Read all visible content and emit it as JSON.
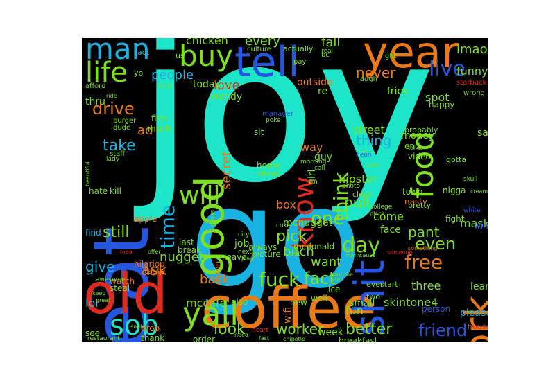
{
  "colors": {
    "background": "#000000",
    "page": "#ffffff",
    "turquoise": "#1de5c8",
    "sky": "#18b3e0",
    "blue": "#2556e0",
    "green": "#7ee020",
    "orange": "#ea7a18",
    "red": "#e02a20",
    "teal": "#17a39a"
  },
  "words": [
    {
      "text": "joy",
      "color": "turquoise"
    },
    {
      "text": "go",
      "color": "sky"
    },
    {
      "text": "coffee",
      "color": "orange"
    },
    {
      "text": "eat",
      "color": "blue"
    },
    {
      "text": "old",
      "color": "red"
    },
    {
      "text": "year",
      "color": "orange"
    },
    {
      "text": "tell",
      "color": "blue"
    },
    {
      "text": "shit",
      "color": "blue"
    },
    {
      "text": "good",
      "color": "green"
    },
    {
      "text": "work",
      "color": "orange"
    },
    {
      "text": "yall",
      "color": "green"
    },
    {
      "text": "sob",
      "color": "turquoise"
    },
    {
      "text": "man",
      "color": "sky"
    },
    {
      "text": "buy",
      "color": "green"
    },
    {
      "text": "life",
      "color": "green"
    },
    {
      "text": "know",
      "color": "red"
    },
    {
      "text": "food",
      "color": "green"
    },
    {
      "text": "think",
      "color": "green"
    },
    {
      "text": "make",
      "color": "blue"
    },
    {
      "text": "live",
      "color": "blue"
    },
    {
      "text": "free",
      "color": "orange"
    },
    {
      "text": "will",
      "color": "green"
    },
    {
      "text": "time",
      "color": "sky"
    },
    {
      "text": "day",
      "color": "green"
    },
    {
      "text": "fuck",
      "color": "green"
    },
    {
      "text": "fact",
      "color": "green"
    },
    {
      "text": "friend",
      "color": "blue"
    },
    {
      "text": "worker",
      "color": "green"
    },
    {
      "text": "better",
      "color": "green"
    },
    {
      "text": "look",
      "color": "green"
    },
    {
      "text": "ask",
      "color": "orange"
    },
    {
      "text": "drive",
      "color": "orange"
    },
    {
      "text": "take",
      "color": "sky"
    },
    {
      "text": "one",
      "color": "green"
    },
    {
      "text": "people",
      "color": "sky"
    },
    {
      "text": "never",
      "color": "orange"
    },
    {
      "text": "even",
      "color": "green"
    },
    {
      "text": "now",
      "color": "orange"
    },
    {
      "text": "give",
      "color": "sky"
    },
    {
      "text": "still",
      "color": "green"
    },
    {
      "text": "back",
      "color": "orange"
    },
    {
      "text": "pick",
      "color": "green"
    },
    {
      "text": "bitch",
      "color": "green"
    },
    {
      "text": "want",
      "color": "green"
    },
    {
      "text": "skintone4",
      "color": "green"
    },
    {
      "text": "pull",
      "color": "green"
    },
    {
      "text": "thing",
      "color": "sky"
    },
    {
      "text": "secret",
      "color": "orange"
    },
    {
      "text": "love",
      "color": "red"
    },
    {
      "text": "chicken",
      "color": "green"
    },
    {
      "text": "every",
      "color": "green"
    },
    {
      "text": "fall",
      "color": "green"
    },
    {
      "text": "lmao",
      "color": "green"
    },
    {
      "text": "funny",
      "color": "green"
    },
    {
      "text": "spot",
      "color": "green"
    },
    {
      "text": "money",
      "color": "green"
    },
    {
      "text": "pant",
      "color": "green"
    },
    {
      "text": "three",
      "color": "green"
    },
    {
      "text": "mask",
      "color": "green"
    },
    {
      "text": "learn",
      "color": "green"
    },
    {
      "text": "ad",
      "color": "orange"
    },
    {
      "text": "ill",
      "color": "sky"
    },
    {
      "text": "job",
      "color": "green"
    },
    {
      "text": "nugget",
      "color": "green"
    },
    {
      "text": "mccafe",
      "color": "green"
    },
    {
      "text": "lol",
      "color": "sky"
    },
    {
      "text": "fun",
      "color": "green"
    },
    {
      "text": "small",
      "color": "green"
    },
    {
      "text": "week",
      "color": "green"
    },
    {
      "text": "wifi",
      "color": "orange"
    },
    {
      "text": "come",
      "color": "green"
    },
    {
      "text": "face",
      "color": "green"
    },
    {
      "text": "street",
      "color": "green"
    },
    {
      "text": "way",
      "color": "orange"
    },
    {
      "text": "guy",
      "color": "green"
    },
    {
      "text": "hipster",
      "color": "green"
    },
    {
      "text": "girl",
      "color": "green"
    },
    {
      "text": "box",
      "color": "orange"
    },
    {
      "text": "today",
      "color": "green"
    },
    {
      "text": "wendy",
      "color": "green"
    },
    {
      "text": "outside",
      "color": "orange"
    },
    {
      "text": "re",
      "color": "green"
    },
    {
      "text": "thru",
      "color": "green"
    },
    {
      "text": "first",
      "color": "green"
    },
    {
      "text": "much",
      "color": "green"
    },
    {
      "text": "sit",
      "color": "green"
    },
    {
      "text": "home",
      "color": "green"
    },
    {
      "text": "cheap",
      "color": "green"
    },
    {
      "text": "fries",
      "color": "green"
    },
    {
      "text": "happy",
      "color": "green"
    },
    {
      "text": "probably",
      "color": "green"
    },
    {
      "text": "end",
      "color": "green"
    },
    {
      "text": "video",
      "color": "green"
    },
    {
      "text": "saw",
      "color": "green"
    },
    {
      "text": "nigga",
      "color": "green"
    },
    {
      "text": "fight",
      "color": "green"
    },
    {
      "text": "window",
      "color": "blue"
    },
    {
      "text": "gotta",
      "color": "green"
    },
    {
      "text": "town",
      "color": "green"
    },
    {
      "text": "close",
      "color": "green"
    },
    {
      "text": "nasty",
      "color": "orange"
    },
    {
      "text": "pretty",
      "color": "green"
    },
    {
      "text": "person",
      "color": "blue"
    },
    {
      "text": "please",
      "color": "sky"
    },
    {
      "text": "mcnugget",
      "color": "green"
    },
    {
      "text": "hate",
      "color": "green"
    },
    {
      "text": "kill",
      "color": "green"
    },
    {
      "text": "apple",
      "color": "orange"
    },
    {
      "text": "find",
      "color": "sky"
    },
    {
      "text": "last",
      "color": "green"
    },
    {
      "text": "break",
      "color": "green"
    },
    {
      "text": "leave",
      "color": "green"
    },
    {
      "text": "damn",
      "color": "orange"
    },
    {
      "text": "always",
      "color": "green"
    },
    {
      "text": "picture",
      "color": "green"
    },
    {
      "text": "mcdonald",
      "color": "green"
    },
    {
      "text": "hilariou",
      "color": "orange"
    },
    {
      "text": "taste",
      "color": "orange"
    },
    {
      "text": "watch",
      "color": "orange"
    },
    {
      "text": "steal",
      "color": "green"
    },
    {
      "text": "ice",
      "color": "green"
    },
    {
      "text": "ever",
      "color": "green"
    },
    {
      "text": "start",
      "color": "green"
    },
    {
      "text": "well",
      "color": "green"
    },
    {
      "text": "also",
      "color": "green"
    },
    {
      "text": "see",
      "color": "green"
    },
    {
      "text": "thank",
      "color": "green"
    },
    {
      "text": "order",
      "color": "green"
    },
    {
      "text": "drop",
      "color": "orange"
    },
    {
      "text": "two",
      "color": "green"
    },
    {
      "text": "new",
      "color": "green"
    },
    {
      "text": "breakfast",
      "color": "green"
    },
    {
      "text": "house",
      "color": "red"
    },
    {
      "text": "act",
      "color": "sky"
    },
    {
      "text": "yo",
      "color": "green"
    },
    {
      "text": "us",
      "color": "green"
    },
    {
      "text": "culture",
      "color": "green"
    },
    {
      "text": "actually",
      "color": "green"
    },
    {
      "text": "pay",
      "color": "green"
    },
    {
      "text": "bc",
      "color": "green"
    },
    {
      "text": "real",
      "color": "green"
    },
    {
      "text": "right",
      "color": "green"
    },
    {
      "text": "laugh",
      "color": "green"
    },
    {
      "text": "starbuck",
      "color": "red"
    },
    {
      "text": "wrong",
      "color": "green"
    },
    {
      "text": "best",
      "color": "green"
    },
    {
      "text": "hot",
      "color": "green"
    },
    {
      "text": "afford",
      "color": "green"
    },
    {
      "text": "burger",
      "color": "green"
    },
    {
      "text": "dude",
      "color": "green"
    },
    {
      "text": "staff",
      "color": "green"
    },
    {
      "text": "lady",
      "color": "green"
    },
    {
      "text": "beautiful",
      "color": "green"
    },
    {
      "text": "manager",
      "color": "blue"
    },
    {
      "text": "poke",
      "color": "green"
    },
    {
      "text": "morning",
      "color": "green"
    },
    {
      "text": "call",
      "color": "green"
    },
    {
      "text": "cry",
      "color": "green"
    },
    {
      "text": "save",
      "color": "green"
    },
    {
      "text": "place",
      "color": "green"
    },
    {
      "text": "photo",
      "color": "green"
    },
    {
      "text": "neon",
      "color": "blue"
    },
    {
      "text": "college",
      "color": "green"
    },
    {
      "text": "gross",
      "color": "green"
    },
    {
      "text": "city",
      "color": "green"
    },
    {
      "text": "coke",
      "color": "green"
    },
    {
      "text": "next",
      "color": "green"
    },
    {
      "text": "play",
      "color": "green"
    },
    {
      "text": "put",
      "color": "green"
    },
    {
      "text": "skull",
      "color": "green"
    },
    {
      "text": "cream",
      "color": "green"
    },
    {
      "text": "white",
      "color": "blue"
    },
    {
      "text": "someone",
      "color": "red"
    },
    {
      "text": "something",
      "color": "orange"
    },
    {
      "text": "meal",
      "color": "red"
    },
    {
      "text": "awesome",
      "color": "green"
    },
    {
      "text": "keep",
      "color": "green"
    },
    {
      "text": "great",
      "color": "green"
    },
    {
      "text": "smile",
      "color": "green"
    },
    {
      "text": "restaurant",
      "color": "green"
    },
    {
      "text": "offer",
      "color": "green"
    },
    {
      "text": "heart",
      "color": "red"
    },
    {
      "text": "need",
      "color": "green"
    },
    {
      "text": "fast",
      "color": "green"
    },
    {
      "text": "chipotle",
      "color": "green"
    },
    {
      "text": "youtube",
      "color": "green"
    },
    {
      "text": "via",
      "color": "green"
    },
    {
      "text": "toilet",
      "color": "green"
    },
    {
      "text": "cause",
      "color": "green"
    },
    {
      "text": "big",
      "color": "green"
    },
    {
      "text": "many",
      "color": "green"
    },
    {
      "text": "ride",
      "color": "green"
    },
    {
      "text": "bad",
      "color": "green"
    },
    {
      "text": "car",
      "color": "green"
    },
    {
      "text": "mn",
      "color": "green"
    }
  ]
}
